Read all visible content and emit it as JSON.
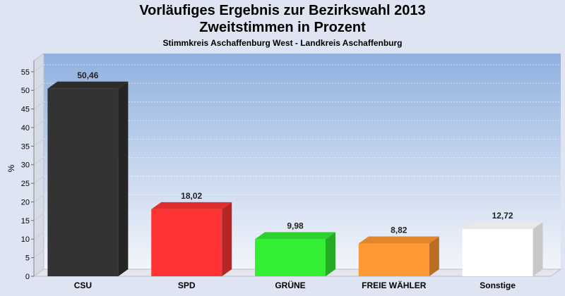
{
  "chart_data": {
    "type": "bar",
    "title": "Vorläufiges Ergebnis zur Bezirkswahl 2013",
    "subtitle": "Zweitstimmen in Prozent",
    "subsubtitle": "Stimmkreis Aschaffenburg West - Landkreis Aschaffenburg",
    "ylabel": "%",
    "xlabel": "",
    "ylim": [
      0,
      58
    ],
    "yticks": [
      0,
      5,
      10,
      15,
      20,
      25,
      30,
      35,
      40,
      45,
      50,
      55
    ],
    "categories": [
      "CSU",
      "SPD",
      "GRÜNE",
      "FREIE WÄHLER",
      "Sonstige"
    ],
    "values": [
      50.46,
      18.02,
      9.98,
      8.82,
      12.72
    ],
    "value_labels": [
      "50,46",
      "18,02",
      "9,98",
      "8,82",
      "12,72"
    ],
    "colors": [
      "#333333",
      "#ff3333",
      "#33ee33",
      "#ff9933",
      "#ffffff"
    ],
    "grid": true
  }
}
